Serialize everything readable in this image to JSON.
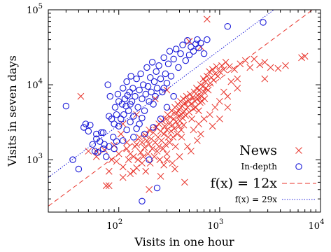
{
  "chart_data": {
    "type": "scatter",
    "xscale": "log",
    "yscale": "log",
    "xlim": [
      20,
      10000
    ],
    "ylim": [
      200,
      100000
    ],
    "xlabel": "Visits in one hour",
    "ylabel": "Visits in seven days",
    "x_ticks": [
      {
        "value": 100,
        "mantissa": "10",
        "exp": "2"
      },
      {
        "value": 1000,
        "mantissa": "10",
        "exp": "3"
      },
      {
        "value": 10000,
        "mantissa": "10",
        "exp": "4"
      }
    ],
    "y_ticks": [
      {
        "value": 1000,
        "mantissa": "10",
        "exp": "3"
      },
      {
        "value": 10000,
        "mantissa": "10",
        "exp": "4"
      },
      {
        "value": 100000,
        "mantissa": "10",
        "exp": "5"
      }
    ],
    "grid": false,
    "legend_position": "bottom-right",
    "series": [
      {
        "name": "News",
        "marker": "x",
        "color": "#e8332a",
        "points": [
          [
            42,
            7000
          ],
          [
            50,
            1300
          ],
          [
            60,
            1100
          ],
          [
            60,
            1300
          ],
          [
            72,
            1350
          ],
          [
            75,
            450
          ],
          [
            80,
            450
          ],
          [
            80,
            700
          ],
          [
            85,
            1000
          ],
          [
            90,
            1550
          ],
          [
            95,
            950
          ],
          [
            100,
            1200
          ],
          [
            105,
            2200
          ],
          [
            110,
            580
          ],
          [
            110,
            800
          ],
          [
            120,
            1400
          ],
          [
            120,
            1700
          ],
          [
            125,
            1000
          ],
          [
            130,
            650
          ],
          [
            130,
            1200
          ],
          [
            140,
            700
          ],
          [
            140,
            1100
          ],
          [
            145,
            1500
          ],
          [
            150,
            780
          ],
          [
            150,
            1600
          ],
          [
            155,
            1000
          ],
          [
            160,
            2000
          ],
          [
            165,
            1250
          ],
          [
            170,
            900
          ],
          [
            170,
            1700
          ],
          [
            175,
            1100
          ],
          [
            180,
            1450
          ],
          [
            185,
            700
          ],
          [
            185,
            2100
          ],
          [
            190,
            1800
          ],
          [
            195,
            1200
          ],
          [
            200,
            1600
          ],
          [
            200,
            2500
          ],
          [
            205,
            900
          ],
          [
            210,
            1900
          ],
          [
            215,
            1400
          ],
          [
            220,
            2300
          ],
          [
            225,
            1100
          ],
          [
            230,
            1700
          ],
          [
            235,
            2700
          ],
          [
            240,
            1300
          ],
          [
            245,
            2000
          ],
          [
            250,
            1500
          ],
          [
            250,
            3000
          ],
          [
            255,
            1000
          ],
          [
            260,
            2400
          ],
          [
            265,
            1800
          ],
          [
            270,
            3300
          ],
          [
            275,
            1400
          ],
          [
            280,
            2200
          ],
          [
            285,
            2800
          ],
          [
            290,
            1600
          ],
          [
            295,
            3500
          ],
          [
            300,
            2500
          ],
          [
            300,
            1200
          ],
          [
            305,
            4000
          ],
          [
            310,
            2000
          ],
          [
            315,
            3000
          ],
          [
            320,
            1700
          ],
          [
            325,
            3700
          ],
          [
            330,
            2400
          ],
          [
            335,
            4500
          ],
          [
            340,
            2900
          ],
          [
            345,
            2000
          ],
          [
            350,
            3500
          ],
          [
            355,
            2600
          ],
          [
            360,
            5000
          ],
          [
            365,
            1500
          ],
          [
            370,
            3200
          ],
          [
            375,
            4200
          ],
          [
            380,
            2200
          ],
          [
            385,
            5500
          ],
          [
            390,
            3800
          ],
          [
            395,
            2800
          ],
          [
            400,
            4700
          ],
          [
            405,
            3300
          ],
          [
            410,
            6000
          ],
          [
            415,
            2500
          ],
          [
            420,
            4000
          ],
          [
            425,
            5200
          ],
          [
            430,
            3600
          ],
          [
            435,
            6500
          ],
          [
            440,
            2900
          ],
          [
            445,
            4400
          ],
          [
            450,
            5700
          ],
          [
            460,
            3900
          ],
          [
            470,
            7000
          ],
          [
            480,
            5000
          ],
          [
            490,
            6200
          ],
          [
            500,
            4300
          ],
          [
            510,
            7500
          ],
          [
            520,
            5500
          ],
          [
            530,
            3500
          ],
          [
            540,
            6800
          ],
          [
            550,
            4800
          ],
          [
            560,
            8000
          ],
          [
            570,
            6000
          ],
          [
            580,
            5000
          ],
          [
            590,
            9000
          ],
          [
            600,
            6500
          ],
          [
            610,
            7200
          ],
          [
            620,
            4500
          ],
          [
            630,
            8500
          ],
          [
            640,
            5800
          ],
          [
            650,
            10000
          ],
          [
            660,
            7000
          ],
          [
            670,
            6000
          ],
          [
            680,
            9500
          ],
          [
            690,
            12000
          ],
          [
            700,
            8000
          ],
          [
            710,
            6500
          ],
          [
            720,
            11000
          ],
          [
            730,
            9000
          ],
          [
            750,
            13000
          ],
          [
            770,
            8500
          ],
          [
            790,
            15000
          ],
          [
            810,
            10500
          ],
          [
            830,
            12500
          ],
          [
            850,
            16000
          ],
          [
            870,
            11500
          ],
          [
            900,
            14000
          ],
          [
            930,
            17500
          ],
          [
            960,
            13000
          ],
          [
            1000,
            15000
          ],
          [
            1050,
            18000
          ],
          [
            1100,
            16000
          ],
          [
            1150,
            20000
          ],
          [
            1250,
            17500
          ],
          [
            1400,
            16000
          ],
          [
            1600,
            19000
          ],
          [
            1800,
            21000
          ],
          [
            2000,
            17000
          ],
          [
            2200,
            22000
          ],
          [
            2500,
            18500
          ],
          [
            2800,
            20000
          ],
          [
            3200,
            17000
          ],
          [
            3800,
            16500
          ],
          [
            4500,
            18000
          ],
          [
            6500,
            23000
          ],
          [
            7000,
            24000
          ],
          [
            340,
            900
          ],
          [
            260,
            600
          ],
          [
            200,
            400
          ],
          [
            420,
            2000
          ],
          [
            480,
            1500
          ],
          [
            550,
            2500
          ],
          [
            620,
            3000
          ],
          [
            700,
            3500
          ],
          [
            800,
            4000
          ],
          [
            1000,
            6000
          ],
          [
            1200,
            7000
          ],
          [
            1500,
            9000
          ],
          [
            900,
            5000
          ],
          [
            1100,
            8000
          ],
          [
            1300,
            11000
          ],
          [
            150,
            4000
          ],
          [
            110,
            3000
          ],
          [
            230,
            6500
          ],
          [
            300,
            8500
          ],
          [
            500,
            38000
          ],
          [
            750,
            75000
          ],
          [
            300,
            1000
          ],
          [
            400,
            1100
          ],
          [
            520,
            1300
          ],
          [
            600,
            1800
          ],
          [
            650,
            2200
          ],
          [
            850,
            2800
          ],
          [
            1000,
            3500
          ],
          [
            1200,
            5000
          ],
          [
            450,
            500
          ],
          [
            360,
            750
          ],
          [
            280,
            850
          ],
          [
            650,
            32000
          ],
          [
            2800,
            12000
          ],
          [
            1500,
            12000
          ]
        ]
      },
      {
        "name": "In-depth",
        "marker": "o",
        "color": "#1a1ad8",
        "points": [
          [
            30,
            5200
          ],
          [
            35,
            1000
          ],
          [
            40,
            750
          ],
          [
            45,
            2700
          ],
          [
            47,
            3000
          ],
          [
            50,
            2400
          ],
          [
            52,
            2900
          ],
          [
            55,
            1600
          ],
          [
            58,
            1300
          ],
          [
            60,
            1900
          ],
          [
            62,
            1250
          ],
          [
            65,
            1750
          ],
          [
            67,
            2300
          ],
          [
            70,
            1400
          ],
          [
            72,
            1600
          ],
          [
            75,
            1100
          ],
          [
            78,
            10000
          ],
          [
            80,
            1500
          ],
          [
            82,
            7000
          ],
          [
            85,
            3500
          ],
          [
            88,
            2000
          ],
          [
            90,
            3000
          ],
          [
            92,
            5000
          ],
          [
            95,
            4000
          ],
          [
            98,
            7500
          ],
          [
            100,
            6000
          ],
          [
            105,
            3500
          ],
          [
            108,
            5500
          ],
          [
            110,
            9000
          ],
          [
            112,
            4000
          ],
          [
            115,
            6500
          ],
          [
            118,
            5200
          ],
          [
            120,
            11000
          ],
          [
            122,
            7200
          ],
          [
            125,
            4500
          ],
          [
            128,
            8000
          ],
          [
            130,
            5500
          ],
          [
            132,
            13000
          ],
          [
            135,
            6000
          ],
          [
            138,
            9000
          ],
          [
            140,
            3800
          ],
          [
            145,
            7000
          ],
          [
            150,
            12000
          ],
          [
            155,
            5000
          ],
          [
            160,
            8500
          ],
          [
            165,
            14000
          ],
          [
            170,
            6500
          ],
          [
            175,
            10000
          ],
          [
            180,
            4500
          ],
          [
            185,
            7500
          ],
          [
            190,
            17000
          ],
          [
            195,
            9500
          ],
          [
            200,
            6000
          ],
          [
            205,
            12500
          ],
          [
            210,
            8000
          ],
          [
            215,
            20000
          ],
          [
            220,
            5500
          ],
          [
            225,
            11000
          ],
          [
            230,
            7000
          ],
          [
            235,
            15000
          ],
          [
            240,
            9000
          ],
          [
            250,
            18000
          ],
          [
            260,
            12000
          ],
          [
            270,
            8000
          ],
          [
            280,
            23000
          ],
          [
            290,
            14000
          ],
          [
            300,
            10500
          ],
          [
            310,
            19000
          ],
          [
            320,
            28000
          ],
          [
            330,
            13000
          ],
          [
            350,
            22000
          ],
          [
            370,
            30000
          ],
          [
            390,
            17000
          ],
          [
            410,
            26000
          ],
          [
            430,
            34000
          ],
          [
            460,
            21000
          ],
          [
            480,
            39000
          ],
          [
            500,
            25000
          ],
          [
            520,
            32000
          ],
          [
            550,
            28000
          ],
          [
            580,
            35000
          ],
          [
            600,
            40000
          ],
          [
            620,
            31000
          ],
          [
            650,
            36000
          ],
          [
            700,
            26000
          ],
          [
            750,
            40000
          ],
          [
            120,
            2500
          ],
          [
            140,
            2000
          ],
          [
            160,
            3000
          ],
          [
            110,
            1800
          ],
          [
            90,
            1400
          ],
          [
            70,
            2300
          ],
          [
            100,
            2800
          ],
          [
            130,
            3200
          ],
          [
            150,
            2600
          ],
          [
            170,
            3600
          ],
          [
            200,
            1000
          ],
          [
            240,
            420
          ],
          [
            170,
            280
          ],
          [
            280,
            9000
          ],
          [
            300,
            5000
          ],
          [
            350,
            7000
          ],
          [
            180,
            2200
          ],
          [
            80,
            3800
          ],
          [
            95,
            1750
          ],
          [
            60,
            2200
          ],
          [
            2700,
            68000
          ],
          [
            1200,
            60000
          ],
          [
            260,
            3500
          ],
          [
            220,
            2700
          ]
        ]
      },
      {
        "name": "f(x) = 12x",
        "kind": "fit",
        "slope": 12,
        "color": "#e8332a",
        "dash": "dashed"
      },
      {
        "name": "f(x) = 29x",
        "kind": "fit",
        "slope": 29,
        "color": "#1a1ad8",
        "dash": "dotted"
      }
    ]
  }
}
